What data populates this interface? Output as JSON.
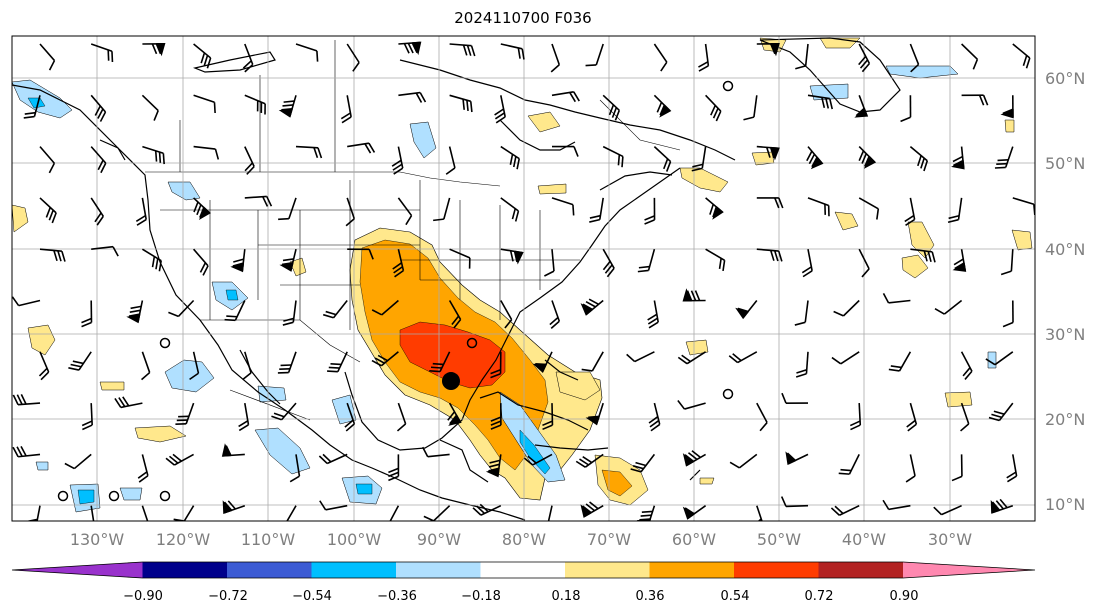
{
  "title": "2024110700 F036",
  "map": {
    "lon_grid": [
      -130,
      -120,
      -110,
      -100,
      -90,
      -80,
      -70,
      -60,
      -50,
      -40,
      -30
    ],
    "lat_grid": [
      10,
      20,
      30,
      40,
      50,
      60
    ],
    "lon_labels": [
      "130°W",
      "120°W",
      "110°W",
      "100°W",
      "90°W",
      "80°W",
      "70°W",
      "60°W",
      "50°W",
      "40°W",
      "30°W"
    ],
    "lat_labels": [
      "10°N",
      "20°N",
      "30°N",
      "40°N",
      "50°N",
      "60°N"
    ],
    "storm_marker": {
      "lon": -88.5,
      "lat": 24.5,
      "color": "#000000"
    }
  },
  "colorbar": {
    "ticks": [
      "−0.90",
      "−0.72",
      "−0.54",
      "−0.36",
      "−0.18",
      "0.18",
      "0.36",
      "0.54",
      "0.72",
      "0.90"
    ],
    "colors": [
      "#9932cc",
      "#00008b",
      "#3c5bd4",
      "#00bfff",
      "#b0e0ff",
      "#ffffff",
      "#ffe88c",
      "#ffa500",
      "#ff3c00",
      "#b22222",
      "#ff88b0"
    ]
  },
  "colors": {
    "land_outline": "#000000",
    "grid": "#aaaaaa",
    "positive": [
      "#ffe88c",
      "#ffa500",
      "#ff3c00"
    ],
    "negative": [
      "#b0e0ff",
      "#00bfff"
    ]
  }
}
